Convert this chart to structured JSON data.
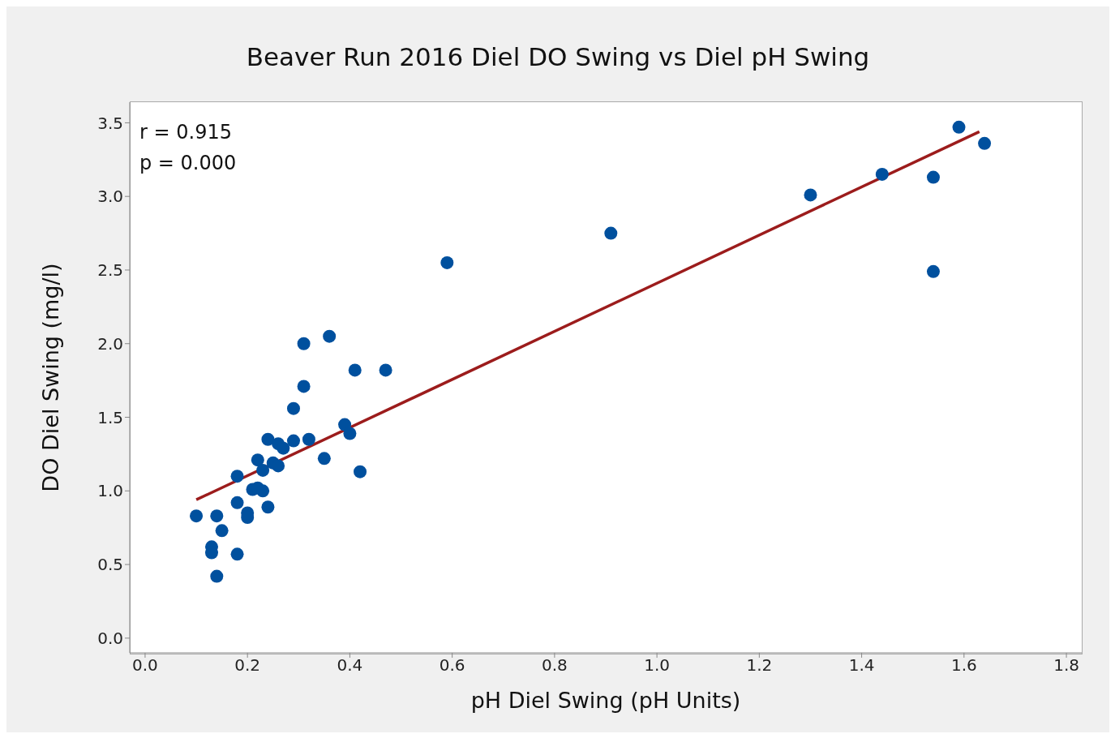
{
  "chart_data": {
    "type": "scatter",
    "title": "Beaver Run 2016 Diel DO Swing vs Diel pH Swing",
    "xlabel": "pH Diel Swing (pH Units)",
    "ylabel": "DO Diel Swing (mg/l)",
    "annotations": [
      "r = 0.915",
      "p = 0.000"
    ],
    "xlim": [
      -0.03,
      1.83
    ],
    "xticks": [
      {
        "value": 0,
        "label": "0.0"
      },
      0.2,
      0.4,
      0.6,
      0.8,
      {
        "value": 1,
        "label": "1.0"
      },
      1.2,
      1.4,
      1.6,
      1.8
    ],
    "ylim": [
      -0.1,
      3.64
    ],
    "yticks": [
      {
        "value": 0,
        "label": "0.0"
      },
      0.5,
      {
        "value": 1,
        "label": "1.0"
      },
      1.5,
      {
        "value": 2,
        "label": "2.0"
      },
      2.5,
      {
        "value": 3,
        "label": "3.0"
      },
      3.5
    ],
    "marker": "circle",
    "series": [
      {
        "color": "#00509e",
        "x": [
          0.31,
          0.36,
          0.41,
          0.47,
          0.31,
          0.29,
          0.39,
          0.4,
          0.24,
          0.26,
          0.27,
          0.29,
          0.32,
          0.35,
          0.42,
          0.22,
          0.23,
          0.25,
          0.26,
          0.18,
          0.21,
          0.22,
          0.23,
          0.24,
          0.18,
          0.2,
          0.2,
          0.1,
          0.14,
          0.15,
          0.13,
          0.13,
          0.18,
          0.14,
          0.59,
          0.91,
          1.3,
          1.44,
          1.54,
          1.54,
          1.59,
          1.64
        ],
        "values": [
          2.0,
          2.05,
          1.82,
          1.82,
          1.71,
          1.56,
          1.45,
          1.39,
          1.35,
          1.32,
          1.29,
          1.34,
          1.35,
          1.22,
          1.13,
          1.21,
          1.14,
          1.19,
          1.17,
          1.1,
          1.01,
          1.02,
          1.0,
          0.89,
          0.92,
          0.85,
          0.82,
          0.83,
          0.83,
          0.73,
          0.62,
          0.58,
          0.57,
          0.42,
          2.55,
          2.75,
          3.01,
          3.15,
          3.13,
          2.49,
          3.47,
          3.36
        ]
      },
      {
        "type": "line",
        "color": "#9c1c1c",
        "marker": "none",
        "x": [
          0.1,
          1.63
        ],
        "values": [
          0.94,
          3.44
        ]
      }
    ]
  }
}
